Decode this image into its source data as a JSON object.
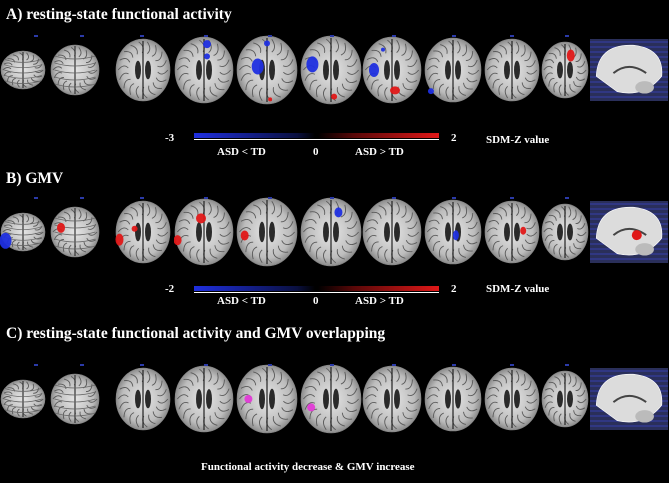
{
  "panel_a": {
    "title": "A) resting-state functional activity",
    "colorbar": {
      "min": "-3",
      "mid": "0",
      "max": "2",
      "label_left": "ASD < TD",
      "label_right": "ASD > TD",
      "unit": "SDM-Z value"
    }
  },
  "panel_b": {
    "title": "B) GMV",
    "colorbar": {
      "min": "-2",
      "mid": "0",
      "max": "2",
      "label_left": "ASD < TD",
      "label_right": "ASD > TD",
      "unit": "SDM-Z value"
    }
  },
  "panel_c": {
    "title": "C) resting-state functional activity and GMV overlapping",
    "caption": "Functional activity decrease & GMV increase"
  },
  "colors": {
    "decrease": "#1f2fe0",
    "increase": "#e01818",
    "overlap": "#e23bd6",
    "background": "#000000"
  }
}
